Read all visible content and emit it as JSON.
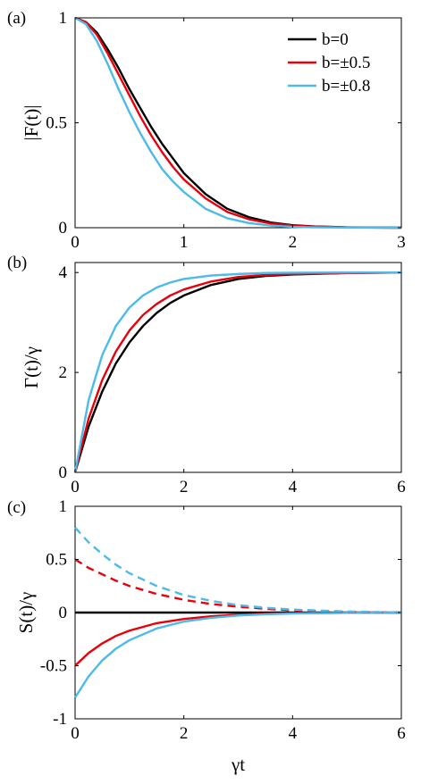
{
  "chart_data": [
    {
      "type": "line",
      "panel_label": "(a)",
      "ylabel": "|F(t)|",
      "xlabel": "",
      "xlim": [
        0,
        3
      ],
      "ylim": [
        0,
        1
      ],
      "xticks": [
        "0",
        "1",
        "2",
        "3"
      ],
      "yticks": [
        "0",
        "0.5",
        "1"
      ],
      "legend": {
        "position": "top-right"
      },
      "series": [
        {
          "name": "b=0",
          "color": "#000000",
          "style": "solid",
          "x": [
            0,
            0.1,
            0.2,
            0.3,
            0.4,
            0.5,
            0.6,
            0.7,
            0.8,
            0.9,
            1.0,
            1.2,
            1.4,
            1.6,
            1.8,
            2.0,
            2.2,
            2.5,
            3.0
          ],
          "y": [
            1.0,
            0.98,
            0.93,
            0.85,
            0.76,
            0.66,
            0.57,
            0.48,
            0.4,
            0.33,
            0.26,
            0.16,
            0.09,
            0.05,
            0.025,
            0.012,
            0.006,
            0.002,
            0.0
          ]
        },
        {
          "name": "b=±0.5",
          "color": "#e8000b",
          "style": "solid",
          "x": [
            0,
            0.1,
            0.2,
            0.3,
            0.4,
            0.5,
            0.6,
            0.7,
            0.8,
            0.9,
            1.0,
            1.2,
            1.4,
            1.6,
            1.8,
            2.0,
            2.2,
            2.5,
            3.0
          ],
          "y": [
            1.0,
            0.98,
            0.92,
            0.83,
            0.73,
            0.63,
            0.53,
            0.44,
            0.36,
            0.29,
            0.23,
            0.14,
            0.075,
            0.04,
            0.02,
            0.01,
            0.005,
            0.0015,
            0.0
          ]
        },
        {
          "name": "b=±0.8",
          "color": "#4cbbe9",
          "style": "solid",
          "x": [
            0,
            0.1,
            0.2,
            0.3,
            0.4,
            0.5,
            0.6,
            0.7,
            0.8,
            0.9,
            1.0,
            1.2,
            1.4,
            1.6,
            1.8,
            2.0,
            2.2,
            2.5,
            3.0
          ],
          "y": [
            1.0,
            0.97,
            0.89,
            0.78,
            0.66,
            0.55,
            0.45,
            0.36,
            0.28,
            0.22,
            0.17,
            0.09,
            0.045,
            0.022,
            0.01,
            0.004,
            0.002,
            0.0005,
            0.0
          ]
        }
      ]
    },
    {
      "type": "line",
      "panel_label": "(b)",
      "ylabel": "Γ(t)/γ",
      "xlabel": "",
      "xlim": [
        0,
        6
      ],
      "ylim": [
        0,
        4.2
      ],
      "xticks": [
        "0",
        "2",
        "4",
        "6"
      ],
      "yticks": [
        "0",
        "2",
        "4"
      ],
      "series": [
        {
          "name": "b=0",
          "color": "#000000",
          "style": "solid",
          "x": [
            0,
            0.25,
            0.5,
            0.75,
            1.0,
            1.25,
            1.5,
            1.75,
            2.0,
            2.5,
            3.0,
            3.5,
            4.0,
            5.0,
            6.0
          ],
          "y": [
            0,
            0.92,
            1.62,
            2.18,
            2.6,
            2.93,
            3.19,
            3.39,
            3.54,
            3.75,
            3.87,
            3.93,
            3.96,
            3.99,
            4.0
          ]
        },
        {
          "name": "b=±0.5",
          "color": "#e8000b",
          "style": "solid",
          "x": [
            0,
            0.25,
            0.5,
            0.75,
            1.0,
            1.25,
            1.5,
            1.75,
            2.0,
            2.5,
            3.0,
            3.5,
            4.0,
            5.0,
            6.0
          ],
          "y": [
            0,
            1.08,
            1.85,
            2.42,
            2.84,
            3.15,
            3.37,
            3.54,
            3.66,
            3.82,
            3.91,
            3.95,
            3.97,
            3.99,
            4.0
          ]
        },
        {
          "name": "b=±0.8",
          "color": "#4cbbe9",
          "style": "solid",
          "x": [
            0,
            0.25,
            0.5,
            0.75,
            1.0,
            1.25,
            1.5,
            1.75,
            2.0,
            2.5,
            3.0,
            3.5,
            4.0,
            5.0,
            6.0
          ],
          "y": [
            0,
            1.45,
            2.35,
            2.93,
            3.3,
            3.54,
            3.7,
            3.8,
            3.87,
            3.94,
            3.97,
            3.99,
            3.995,
            4.0,
            4.0
          ]
        }
      ]
    },
    {
      "type": "line",
      "panel_label": "(c)",
      "ylabel": "S(t)/γ",
      "xlabel": "γt",
      "xlim": [
        0,
        6
      ],
      "ylim": [
        -1,
        1
      ],
      "xticks": [
        "0",
        "2",
        "4",
        "6"
      ],
      "yticks": [
        "-1",
        "-0.5",
        "0",
        "0.5",
        "1"
      ],
      "series": [
        {
          "name": "b=0",
          "color": "#000000",
          "style": "solid",
          "x": [
            0,
            6
          ],
          "y": [
            0,
            0
          ]
        },
        {
          "name": "b=±0.5",
          "color": "#e8000b",
          "style": "solid",
          "x": [
            0,
            0.25,
            0.5,
            0.75,
            1.0,
            1.5,
            2.0,
            2.5,
            3.0,
            3.5,
            4.0,
            5.0,
            6.0
          ],
          "y": [
            -0.5,
            -0.38,
            -0.29,
            -0.22,
            -0.17,
            -0.1,
            -0.06,
            -0.035,
            -0.02,
            -0.012,
            -0.007,
            -0.002,
            0.0
          ]
        },
        {
          "name": "b=±0.8",
          "color": "#4cbbe9",
          "style": "solid",
          "x": [
            0,
            0.25,
            0.5,
            0.75,
            1.0,
            1.5,
            2.0,
            2.5,
            3.0,
            3.5,
            4.0,
            5.0,
            6.0
          ],
          "y": [
            -0.8,
            -0.6,
            -0.45,
            -0.34,
            -0.26,
            -0.15,
            -0.085,
            -0.05,
            -0.028,
            -0.016,
            -0.009,
            -0.003,
            0.0
          ]
        },
        {
          "name": "b=±0.5",
          "color": "#e8000b",
          "style": "dashed",
          "x": [
            0,
            0.25,
            0.5,
            0.75,
            1.0,
            1.5,
            2.0,
            2.5,
            3.0,
            3.5,
            4.0,
            5.0,
            6.0
          ],
          "y": [
            0.5,
            0.42,
            0.36,
            0.3,
            0.25,
            0.175,
            0.12,
            0.08,
            0.055,
            0.035,
            0.02,
            0.007,
            0.0
          ]
        },
        {
          "name": "b=±0.8",
          "color": "#4cbbe9",
          "style": "dashed",
          "x": [
            0,
            0.25,
            0.5,
            0.75,
            1.0,
            1.5,
            2.0,
            2.5,
            3.0,
            3.5,
            4.0,
            5.0,
            6.0
          ],
          "y": [
            0.8,
            0.66,
            0.55,
            0.45,
            0.37,
            0.25,
            0.165,
            0.11,
            0.07,
            0.045,
            0.028,
            0.01,
            0.0
          ]
        }
      ]
    }
  ]
}
